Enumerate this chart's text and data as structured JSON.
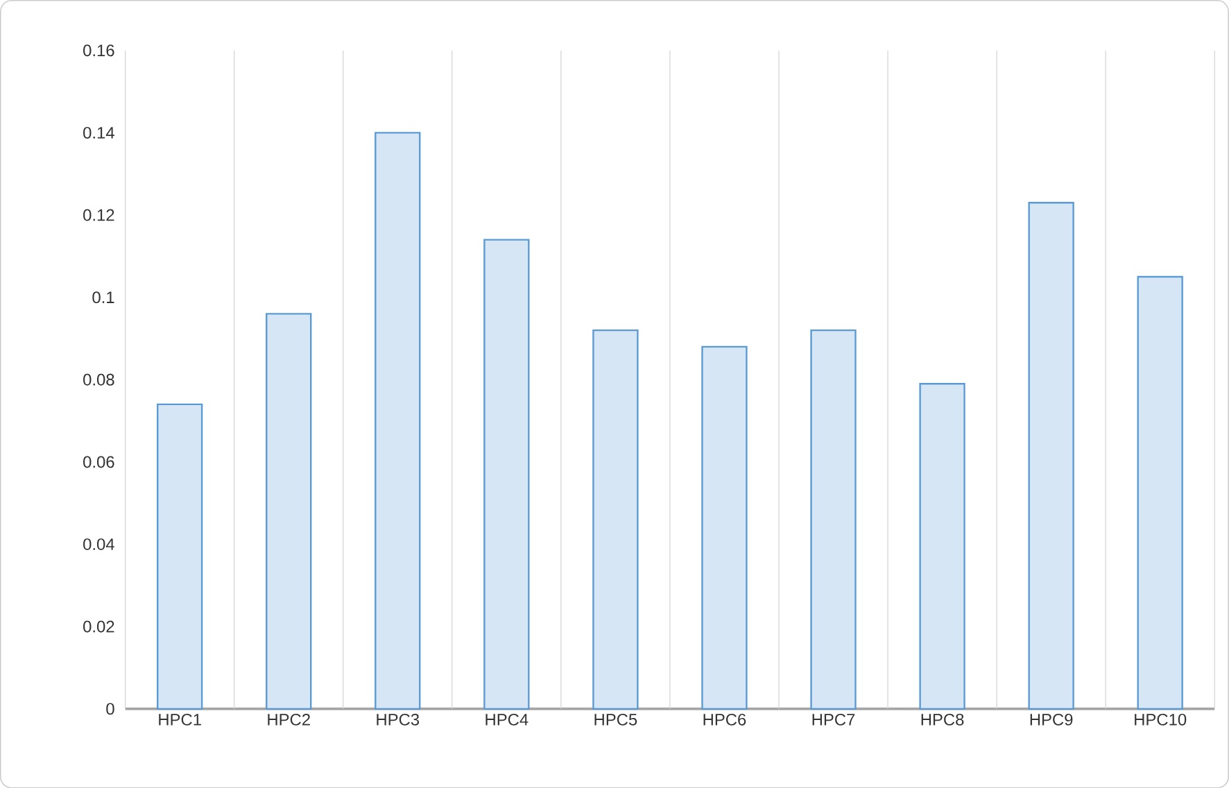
{
  "chart_data": {
    "type": "bar",
    "categories": [
      "HPC1",
      "HPC2",
      "HPC3",
      "HPC4",
      "HPC5",
      "HPC6",
      "HPC7",
      "HPC8",
      "HPC9",
      "HPC10"
    ],
    "values": [
      0.074,
      0.096,
      0.14,
      0.114,
      0.092,
      0.088,
      0.092,
      0.079,
      0.123,
      0.105
    ],
    "color": "#5b9bd5",
    "ylim": [
      0,
      0.16
    ],
    "yticks": [
      0,
      0.02,
      0.04,
      0.06,
      0.08,
      0.1,
      0.12,
      0.14,
      0.16
    ],
    "grid": "x"
  }
}
